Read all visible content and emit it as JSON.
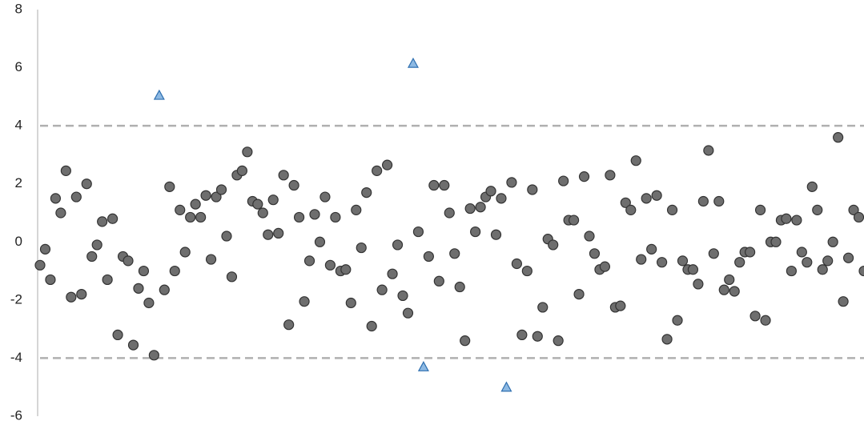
{
  "chart_data": {
    "type": "scatter",
    "xlim": [
      1,
      160
    ],
    "ylim": [
      -6,
      8
    ],
    "yticks": [
      -6,
      -4,
      -2,
      0,
      2,
      4,
      6,
      8
    ],
    "hlines": [
      4,
      -4
    ],
    "hline_color": "#b0b0b0",
    "series": [
      {
        "color": "#6e6e6e",
        "marker": "circle",
        "x": [
          1,
          2,
          3,
          4,
          5,
          6,
          7,
          8,
          9,
          10,
          11,
          12,
          13,
          14,
          15,
          16,
          17,
          18,
          19,
          20,
          21,
          22,
          23,
          25,
          26,
          27,
          28,
          29,
          30,
          31,
          32,
          33,
          34,
          35,
          36,
          37,
          38,
          39,
          40,
          41,
          42,
          43,
          44,
          45,
          46,
          47,
          48,
          49,
          50,
          51,
          52,
          53,
          54,
          55,
          56,
          57,
          58,
          59,
          60,
          61,
          62,
          63,
          64,
          65,
          66,
          67,
          68,
          69,
          70,
          71,
          72,
          74,
          76,
          77,
          78,
          79,
          80,
          81,
          82,
          83,
          84,
          85,
          86,
          87,
          88,
          89,
          90,
          92,
          93,
          94,
          95,
          96,
          97,
          98,
          99,
          100,
          101,
          102,
          103,
          104,
          105,
          106,
          107,
          108,
          109,
          110,
          111,
          112,
          113,
          114,
          115,
          116,
          117,
          118,
          119,
          120,
          121,
          122,
          123,
          124,
          125,
          126,
          127,
          128,
          129,
          130,
          131,
          132,
          133,
          134,
          135,
          136,
          137,
          138,
          139,
          140,
          141,
          142,
          143,
          144,
          145,
          146,
          147,
          148,
          149,
          150,
          151,
          152,
          153,
          154,
          155,
          156,
          157,
          158,
          159,
          160
        ],
        "values": [
          -0.8,
          -0.25,
          -1.3,
          1.5,
          1.0,
          2.45,
          -1.9,
          1.55,
          -1.8,
          2.0,
          -0.5,
          -0.1,
          0.7,
          -1.3,
          0.8,
          -3.2,
          -0.5,
          -0.65,
          -3.55,
          -1.6,
          -1.0,
          -2.1,
          -3.9,
          -1.65,
          1.9,
          -1.0,
          1.1,
          -0.35,
          0.85,
          1.3,
          0.85,
          1.6,
          -0.6,
          1.55,
          1.8,
          0.2,
          -1.2,
          2.3,
          2.45,
          3.1,
          1.4,
          1.3,
          1.0,
          0.25,
          1.45,
          0.3,
          2.3,
          -2.85,
          1.95,
          0.85,
          -2.05,
          -0.65,
          0.95,
          0,
          1.55,
          -0.8,
          0.85,
          -1.0,
          -0.95,
          -2.1,
          1.1,
          -0.2,
          1.7,
          -2.9,
          2.45,
          -1.65,
          2.65,
          -1.1,
          -0.1,
          -1.85,
          -2.45,
          0.35,
          -0.5,
          1.95,
          -1.35,
          1.95,
          1.0,
          -0.4,
          -1.55,
          -3.4,
          1.15,
          0.35,
          1.2,
          1.55,
          1.75,
          0.25,
          1.5,
          2.05,
          -0.75,
          -3.2,
          -1.0,
          1.8,
          -3.25,
          -2.25,
          0.1,
          -0.1,
          -3.4,
          2.1,
          0.75,
          0.75,
          -1.8,
          2.25,
          0.2,
          -0.4,
          -0.95,
          -0.85,
          2.3,
          -2.25,
          -2.2,
          1.35,
          1.1,
          2.8,
          -0.6,
          1.5,
          -0.25,
          1.6,
          -0.7,
          -3.35,
          1.1,
          -2.7,
          -0.65,
          -0.95,
          -0.95,
          -1.45,
          1.4,
          3.15,
          -0.4,
          1.4,
          -1.65,
          -1.3,
          -1.7,
          -0.7,
          -0.35,
          -0.35,
          -2.55,
          1.1,
          -2.7,
          0,
          0,
          0.75,
          0.8,
          -1.0,
          0.75,
          -0.35,
          -0.7,
          1.9,
          1.1,
          -0.95,
          -0.65,
          0,
          3.6,
          -2.05,
          -0.55,
          1.1,
          0.85,
          -1.0
        ]
      },
      {
        "color": "#8db9e3",
        "marker": "triangle",
        "x": [
          24,
          73,
          75,
          91
        ],
        "values": [
          5.05,
          6.15,
          -4.3,
          -5.0
        ]
      }
    ]
  }
}
